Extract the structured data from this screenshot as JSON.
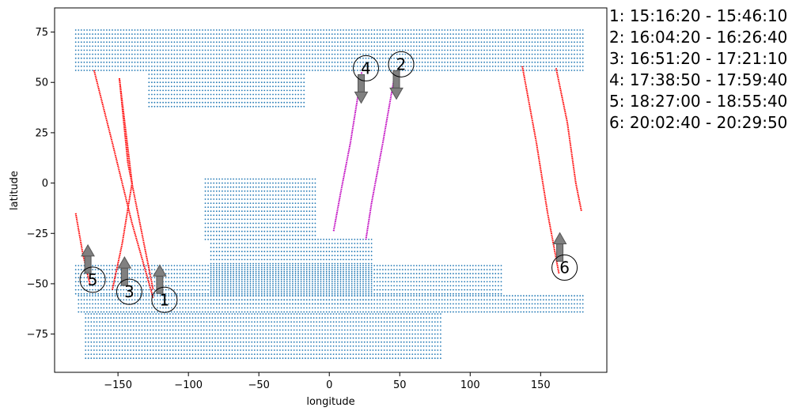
{
  "chart_data": {
    "type": "scatter",
    "title": "",
    "xlabel": "longitude",
    "ylabel": "latitude",
    "xlim": [
      -195,
      197
    ],
    "ylim": [
      -94,
      87
    ],
    "xticks": [
      -150,
      -100,
      -50,
      0,
      50,
      100,
      150
    ],
    "yticks": [
      -75,
      -50,
      -25,
      0,
      25,
      50,
      75
    ],
    "grid": false,
    "colors": {
      "mask": "#1f77b4",
      "track": "#ff0000",
      "track_alt": "#bf00bf",
      "arrow": "#808080"
    },
    "mask_regions": [
      {
        "lat": [
          56,
          77
        ],
        "lon": [
          -180,
          180
        ]
      },
      {
        "lat": [
          38,
          56
        ],
        "lon": [
          -128,
          -18
        ]
      },
      {
        "lat": [
          -28,
          2
        ],
        "lon": [
          -88,
          -10
        ]
      },
      {
        "lat": [
          -60,
          -28
        ],
        "lon": [
          -84,
          30
        ]
      },
      {
        "lat": [
          -55,
          -41
        ],
        "lon": [
          -180,
          122
        ]
      },
      {
        "lat": [
          -64,
          -55
        ],
        "lon": [
          -178,
          180
        ]
      },
      {
        "lat": [
          -87,
          -64
        ],
        "lon": [
          -173,
          80
        ]
      }
    ],
    "tracks": [
      {
        "id": "1",
        "color": "red",
        "x": [
          -167,
          -154,
          -140,
          -125
        ],
        "y": [
          56,
          20,
          -20,
          -57
        ]
      },
      {
        "id": "2",
        "color": "magenta",
        "x": [
          47,
          38,
          30,
          26
        ],
        "y": [
          56,
          20,
          -10,
          -28
        ]
      },
      {
        "id": "3",
        "color": "red",
        "x": [
          -149,
          -140,
          -147,
          -154
        ],
        "y": [
          52,
          0,
          -30,
          -53
        ]
      },
      {
        "id": "3b",
        "color": "red",
        "x": [
          -149,
          -143,
          -133,
          -125
        ],
        "y": [
          52,
          10,
          -25,
          -53
        ]
      },
      {
        "id": "4",
        "color": "magenta",
        "x": [
          23,
          15,
          8,
          3
        ],
        "y": [
          55,
          20,
          -5,
          -24
        ]
      },
      {
        "id": "5",
        "color": "red",
        "x": [
          -180,
          -175,
          -170
        ],
        "y": [
          -15,
          -35,
          -50
        ]
      },
      {
        "id": "6a",
        "color": "red",
        "x": [
          137,
          147,
          155,
          163
        ],
        "y": [
          58,
          20,
          -15,
          -45
        ]
      },
      {
        "id": "6b",
        "color": "red",
        "x": [
          161,
          169,
          175,
          179
        ],
        "y": [
          57,
          30,
          0,
          -14
        ]
      }
    ],
    "markers": [
      {
        "label": "1",
        "x": -117,
        "y": -58,
        "dir": "up"
      },
      {
        "label": "2",
        "x": 51,
        "y": 59,
        "dir": "down"
      },
      {
        "label": "3",
        "x": -142,
        "y": -54,
        "dir": "up"
      },
      {
        "label": "4",
        "x": 26,
        "y": 57,
        "dir": "down"
      },
      {
        "label": "5",
        "x": -168,
        "y": -48,
        "dir": "up"
      },
      {
        "label": "6",
        "x": 167,
        "y": -42,
        "dir": "up"
      }
    ],
    "legend": [
      "1:  15:16:20 - 15:46:10",
      "2:  16:04:20 - 16:26:40",
      "3:  16:51:20 - 17:21:10",
      "4:  17:38:50 - 17:59:40",
      "5:  18:27:00 - 18:55:40",
      "6:  20:02:40 - 20:29:50"
    ]
  }
}
